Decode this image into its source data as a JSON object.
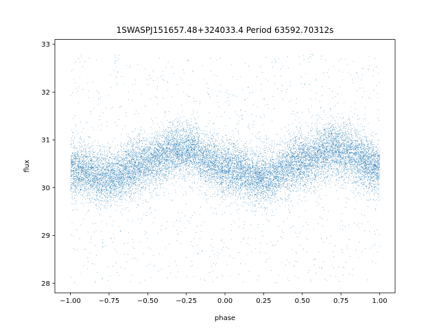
{
  "chart_data": {
    "type": "scatter",
    "title": "1SWASPJ151657.48+324033.4 Period 63592.70312s",
    "xlabel": "phase",
    "ylabel": "flux",
    "xlim": [
      -1.1,
      1.1
    ],
    "ylim": [
      27.8,
      33.1
    ],
    "xticks": [
      -1.0,
      -0.75,
      -0.5,
      -0.25,
      0.0,
      0.25,
      0.5,
      0.75,
      1.0
    ],
    "xtick_labels": [
      "−1.00",
      "−0.75",
      "−0.50",
      "−0.25",
      "0.00",
      "0.25",
      "0.50",
      "0.75",
      "1.00"
    ],
    "yticks": [
      28,
      29,
      30,
      31,
      32,
      33
    ],
    "ytick_labels": [
      "28",
      "29",
      "30",
      "31",
      "32",
      "33"
    ],
    "grid": false,
    "series": [
      {
        "color": "#1f77b4",
        "marker": "pixel",
        "phase_range": [
          -1.0,
          1.0
        ],
        "curve_phase": [
          -1.0,
          -0.75,
          -0.5,
          -0.3,
          -0.25,
          -0.1,
          0.0,
          0.25,
          0.5,
          0.7,
          0.75,
          0.9,
          1.0
        ],
        "curve_flux": [
          30.4,
          30.2,
          30.55,
          30.8,
          30.8,
          30.55,
          30.4,
          30.2,
          30.55,
          30.8,
          30.8,
          30.55,
          30.4
        ],
        "scatter_sd": 0.28,
        "outlier_range": [
          28.0,
          32.8
        ],
        "n_points": 16000,
        "n_outliers": 1200
      }
    ]
  }
}
